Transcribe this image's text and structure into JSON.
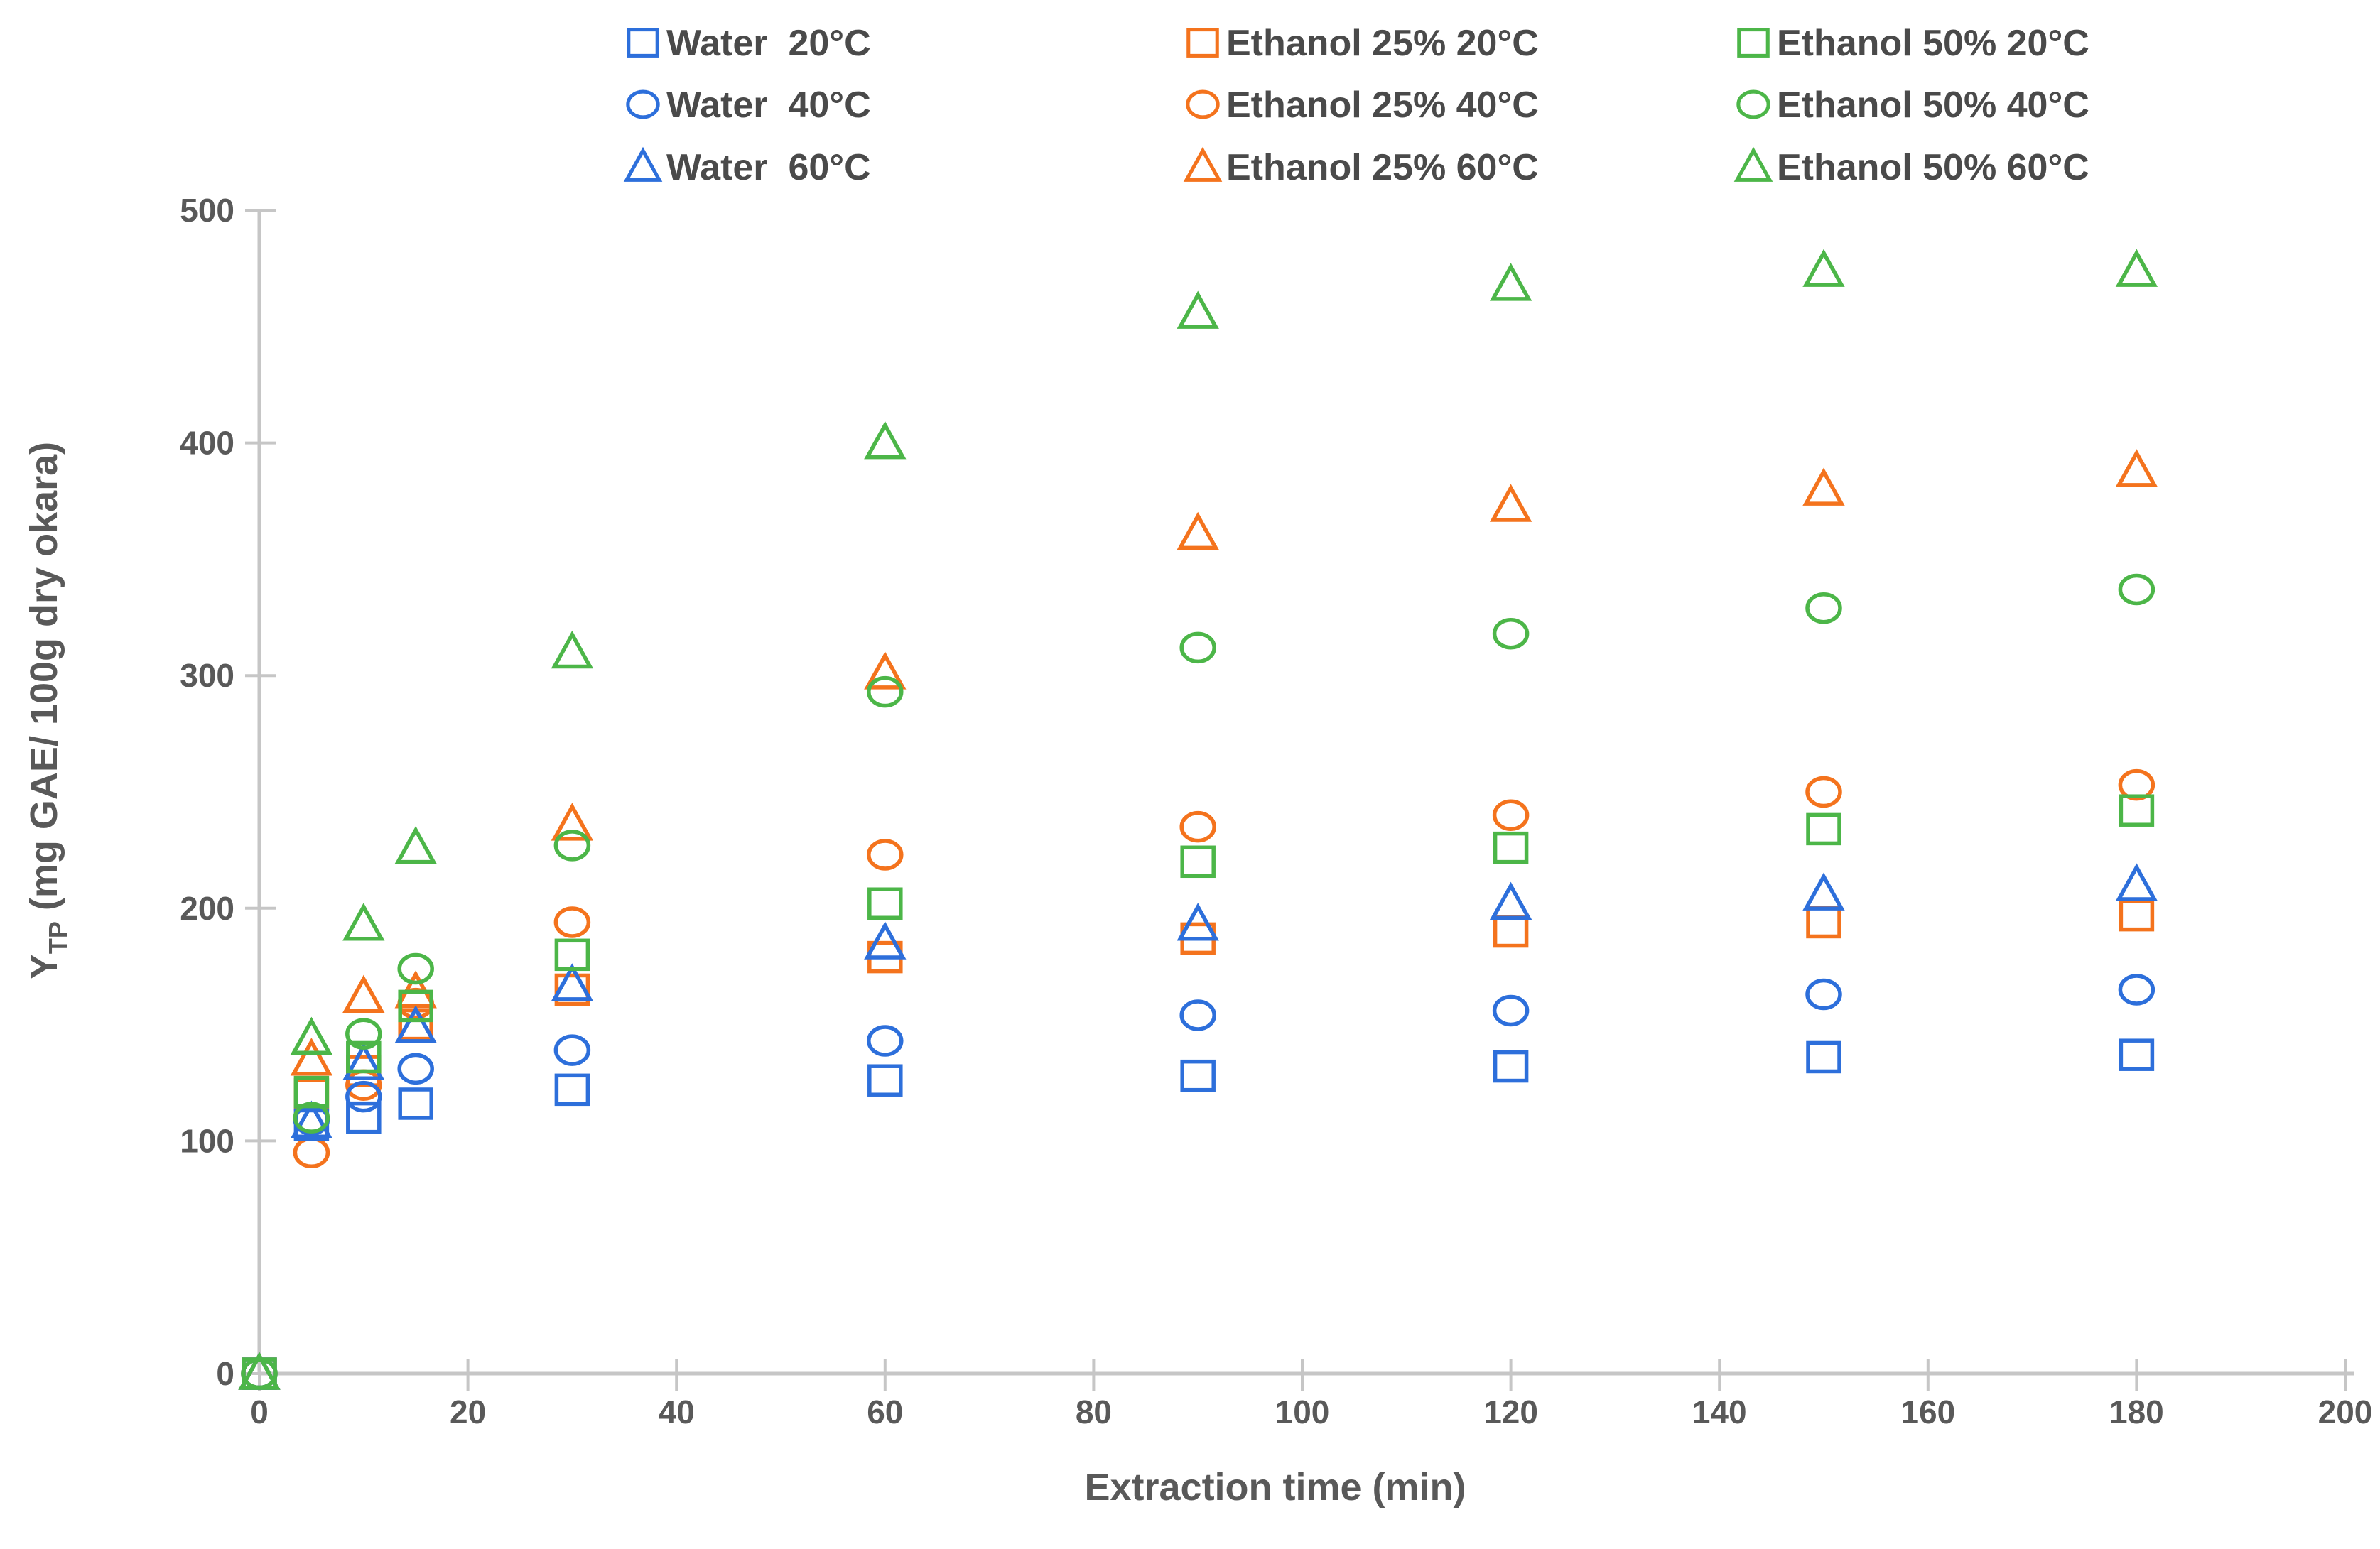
{
  "chart_data": {
    "type": "scatter",
    "title": "",
    "xlabel": "Extraction time (min)",
    "ylabel_main": "Y",
    "ylabel_sub": "TP",
    "ylabel_rest": " (mg GAE/ 100g dry okara)",
    "xlim": [
      0,
      200
    ],
    "ylim": [
      0,
      500
    ],
    "x_ticks": [
      0,
      20,
      40,
      60,
      80,
      100,
      120,
      140,
      160,
      180,
      200
    ],
    "y_ticks": [
      0,
      100,
      200,
      300,
      400,
      500
    ],
    "grid": false,
    "legend_position": "top",
    "x": [
      0,
      5,
      10,
      15,
      30,
      60,
      90,
      120,
      150,
      180
    ],
    "series": [
      {
        "name": "Water  20°C",
        "solvent": "Water",
        "temperature": "20°C",
        "color": "#2D6FDB",
        "marker": "square",
        "values": [
          0,
          107,
          110,
          116,
          122,
          126,
          128,
          132,
          136,
          137
        ]
      },
      {
        "name": "Water  40°C",
        "solvent": "Water",
        "temperature": "40°C",
        "color": "#2D6FDB",
        "marker": "circle",
        "values": [
          0,
          109,
          119,
          131,
          139,
          143,
          154,
          156,
          163,
          165
        ]
      },
      {
        "name": "Water  60°C",
        "solvent": "Water",
        "temperature": "60°C",
        "color": "#2D6FDB",
        "marker": "triangle",
        "values": [
          0,
          108,
          133,
          149,
          167,
          185,
          193,
          202,
          206,
          210
        ]
      },
      {
        "name": "Ethanol 25% 20°C",
        "solvent": "Ethanol 25%",
        "temperature": "20°C",
        "color": "#F4731D",
        "marker": "square",
        "values": [
          0,
          120,
          130,
          150,
          165,
          179,
          187,
          190,
          194,
          197
        ]
      },
      {
        "name": "Ethanol 25% 40°C",
        "solvent": "Ethanol 25%",
        "temperature": "40°C",
        "color": "#F4731D",
        "marker": "circle",
        "values": [
          0,
          95,
          124,
          159,
          194,
          223,
          235,
          240,
          250,
          253
        ]
      },
      {
        "name": "Ethanol 25% 60°C",
        "solvent": "Ethanol 25%",
        "temperature": "60°C",
        "color": "#F4731D",
        "marker": "triangle",
        "values": [
          0,
          135,
          162,
          164,
          236,
          301,
          361,
          373,
          380,
          388
        ]
      },
      {
        "name": "Ethanol 50% 20°C",
        "solvent": "Ethanol 50%",
        "temperature": "20°C",
        "color": "#4CB648",
        "marker": "square",
        "values": [
          0,
          121,
          136,
          158,
          180,
          202,
          220,
          226,
          234,
          242
        ]
      },
      {
        "name": "Ethanol 50% 40°C",
        "solvent": "Ethanol 50%",
        "temperature": "40°C",
        "color": "#4CB648",
        "marker": "circle",
        "values": [
          0,
          110,
          146,
          174,
          227,
          293,
          312,
          318,
          329,
          337
        ]
      },
      {
        "name": "Ethanol 50% 60°C",
        "solvent": "Ethanol 50%",
        "temperature": "60°C",
        "color": "#4CB648",
        "marker": "triangle",
        "values": [
          0,
          144,
          193,
          226,
          310,
          400,
          456,
          468,
          474,
          474
        ]
      }
    ]
  },
  "colors": {
    "axis_line": "#C6C6C6",
    "tick_label": "#595959",
    "axis_title": "#595959",
    "legend_text": "#4A4A4A",
    "background": "#FFFFFF",
    "blue": "#2D6FDB",
    "orange": "#F4731D",
    "green": "#4CB648"
  }
}
